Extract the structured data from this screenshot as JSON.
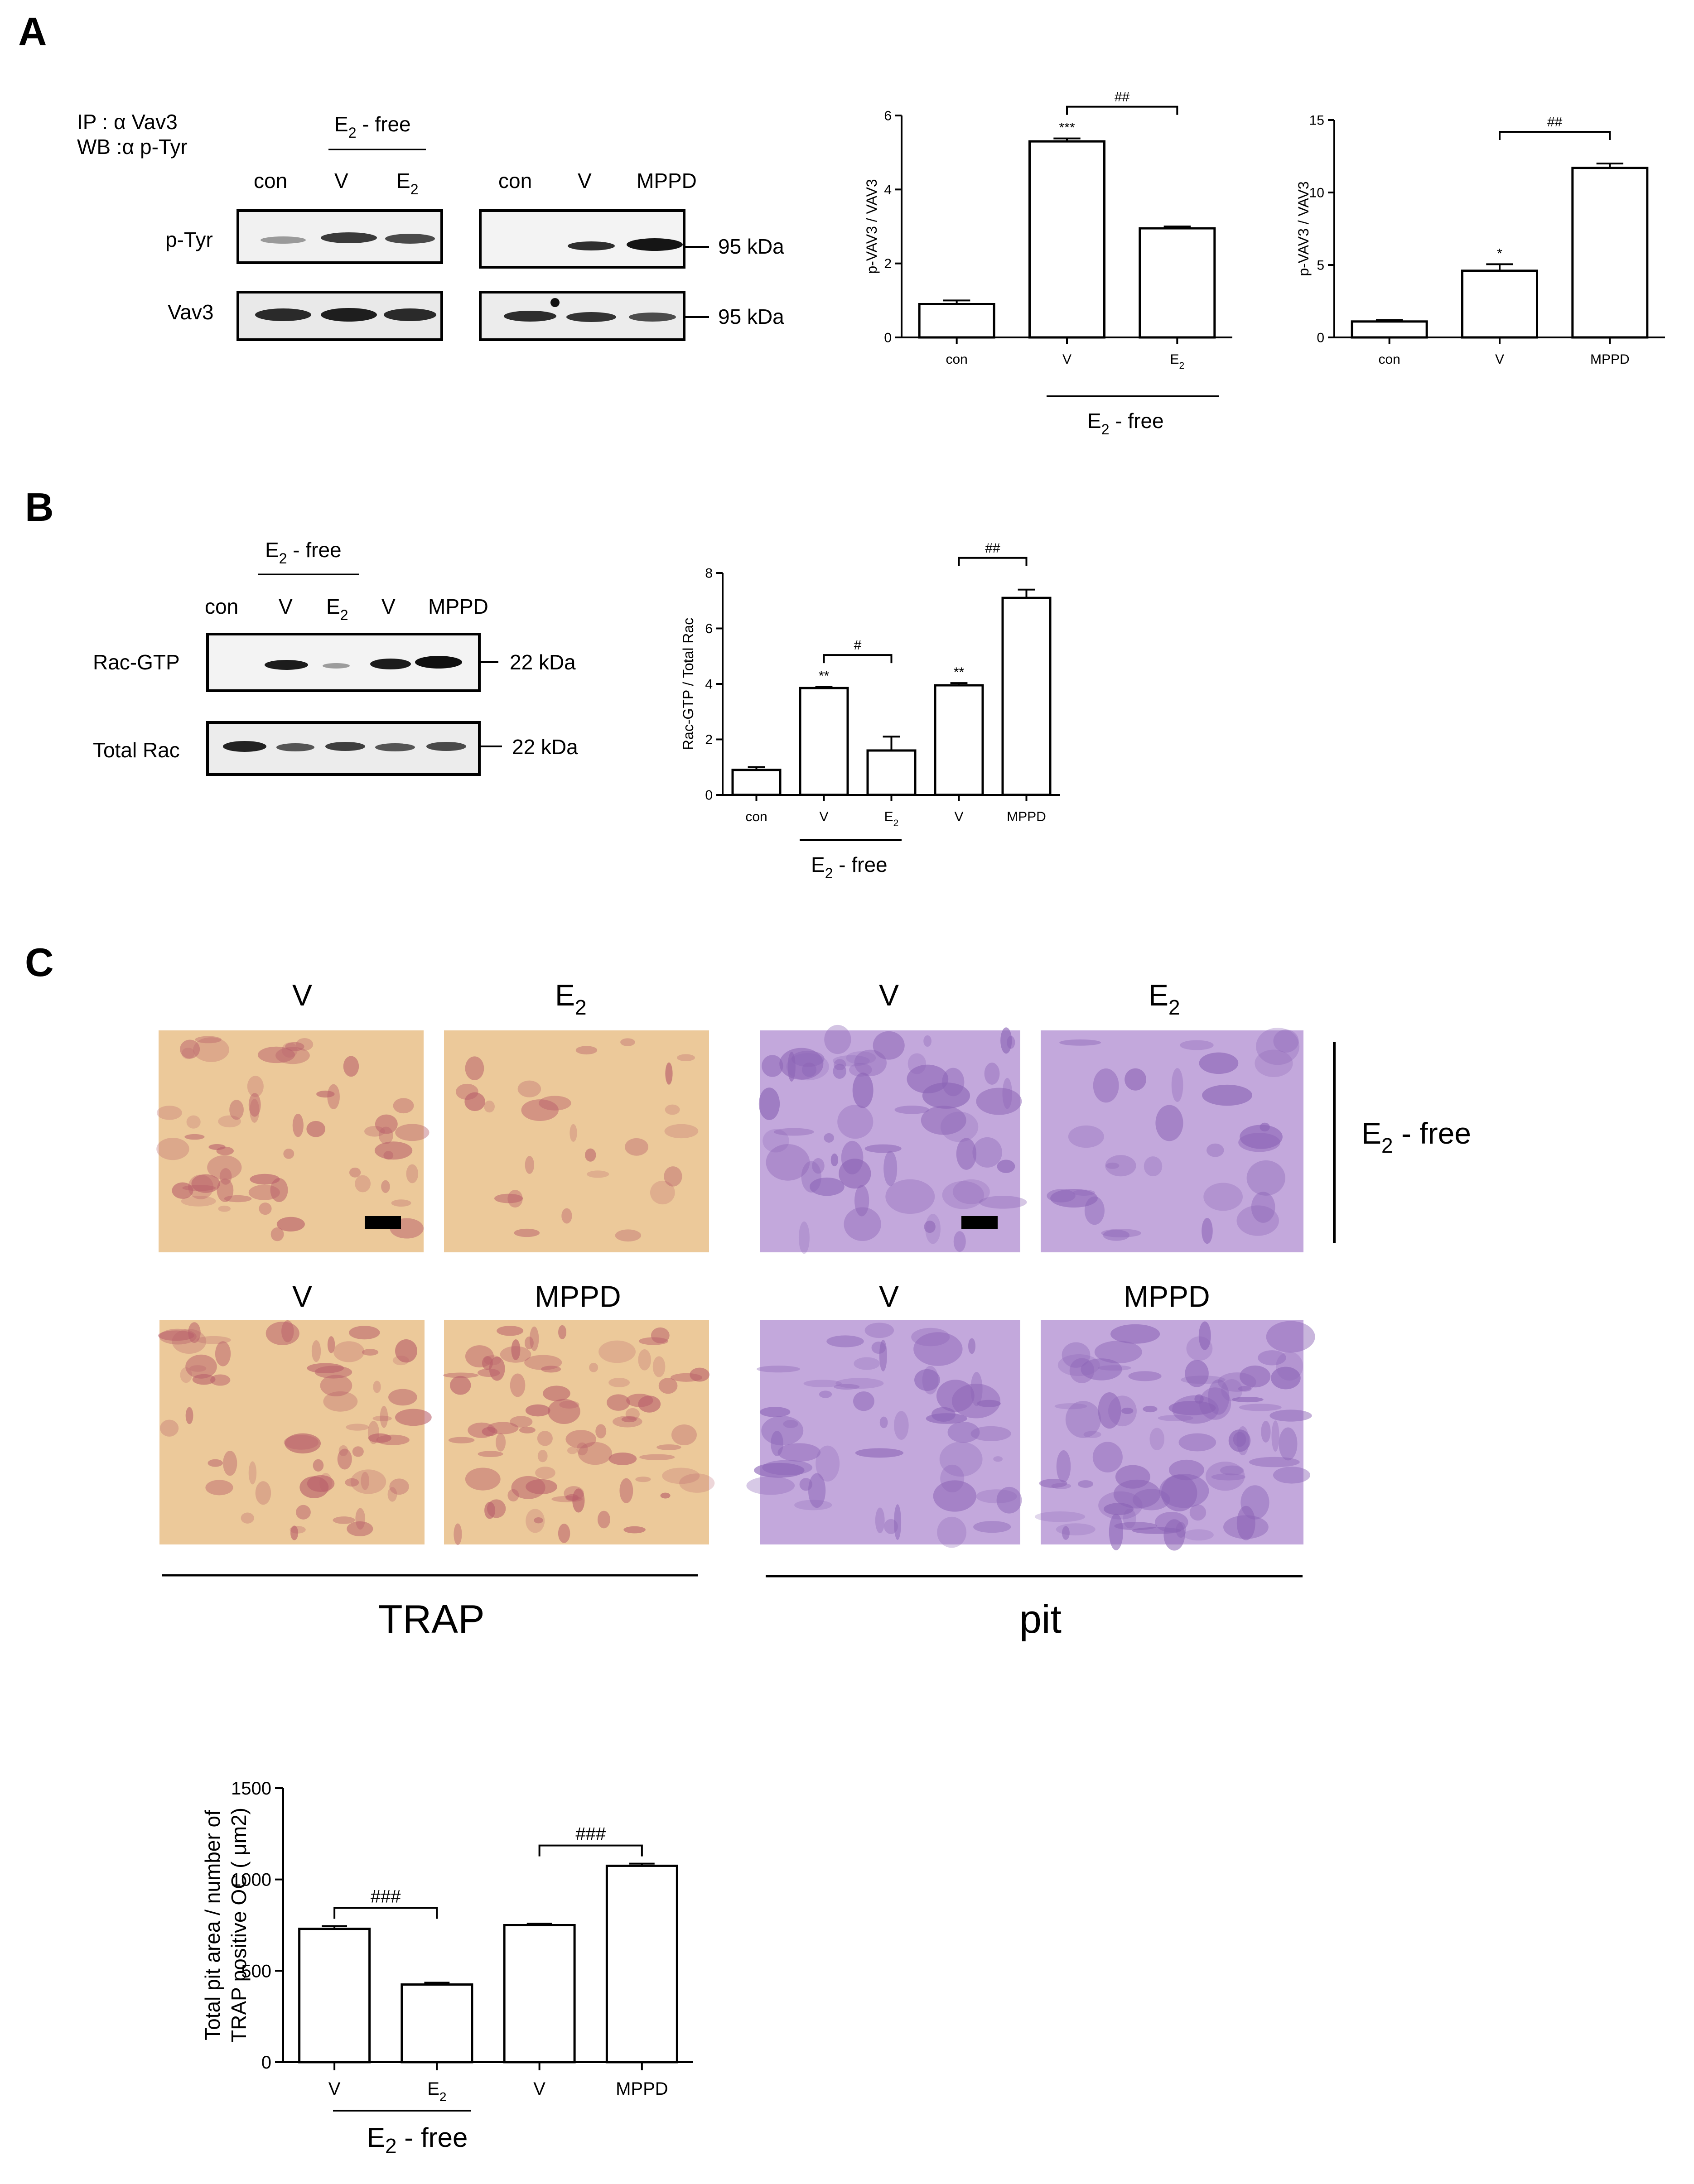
{
  "panel_letters": [
    "A",
    "B",
    "C"
  ],
  "panelA": {
    "ip": "IP : α Vav3",
    "wb": "WB :α p-Tyr",
    "e2free": "E",
    "e2free_sub": "2",
    "e2free_rest": " - free",
    "blot1": {
      "lanes": [
        "con",
        "V",
        "E"
      ],
      "lanes_sub": [
        "",
        "",
        "2"
      ]
    },
    "blot2": {
      "lanes": [
        "con",
        "V",
        "MPPD"
      ]
    },
    "rows": [
      "p-Tyr",
      "Vav3"
    ],
    "kda": "95 kDa"
  },
  "panelB": {
    "e2free": "E",
    "e2free_sub": "2",
    "e2free_rest": " - free",
    "lanes": [
      "con",
      "V",
      "E",
      "V",
      "MPPD"
    ],
    "lanes_sub": [
      "",
      "",
      "2",
      "",
      ""
    ],
    "rows": [
      "Rac-GTP",
      "Total Rac"
    ],
    "kda": "22 kDa"
  },
  "panelC": {
    "top_labels": [
      "V",
      "E",
      "V",
      "E"
    ],
    "top_subs": [
      "",
      "2",
      "",
      "2"
    ],
    "bottom_labels": [
      "V",
      "MPPD",
      "V",
      "MPPD"
    ],
    "side": "E",
    "side_sub": "2",
    "side_rest": " - free",
    "trap": "TRAP",
    "pit": "pit",
    "colors": {
      "trap_bg": "#ecc99a",
      "trap_cell": "#b9606b",
      "pit_bg": "#c3a8dc",
      "pit_cell": "#8c64b6"
    }
  },
  "chart_data": [
    {
      "id": "A-left",
      "type": "bar",
      "categories": [
        "con",
        "V",
        "E2"
      ],
      "values": [
        0.9,
        5.3,
        2.95
      ],
      "errors": [
        0.1,
        0.08,
        0.05
      ],
      "ylabel": "p-VAV3 / VAV3",
      "ylim": [
        0,
        6
      ],
      "yticks": [
        0,
        2,
        4,
        6
      ],
      "stars": [
        "",
        "***",
        ""
      ],
      "brackets": [
        {
          "from": 1,
          "to": 2,
          "label": "##"
        }
      ],
      "group_label": "E2 - free"
    },
    {
      "id": "A-right",
      "type": "bar",
      "categories": [
        "con",
        "V",
        "MPPD"
      ],
      "values": [
        1.1,
        4.6,
        11.7
      ],
      "errors": [
        0.1,
        0.45,
        0.3
      ],
      "ylabel": "p-VAV3 / VAV3",
      "ylim": [
        0,
        15
      ],
      "yticks": [
        0,
        5,
        10,
        15
      ],
      "stars": [
        "",
        "*",
        ""
      ],
      "brackets": [
        {
          "from": 1,
          "to": 2,
          "label": "##"
        }
      ]
    },
    {
      "id": "B",
      "type": "bar",
      "categories": [
        "con",
        "V",
        "E2",
        "V",
        "MPPD"
      ],
      "values": [
        0.9,
        3.85,
        1.6,
        3.95,
        7.1
      ],
      "errors": [
        0.1,
        0.05,
        0.5,
        0.08,
        0.3
      ],
      "ylabel": "Rac-GTP / Total Rac",
      "ylim": [
        0,
        8
      ],
      "yticks": [
        0,
        2,
        4,
        6,
        8
      ],
      "stars": [
        "",
        "**",
        "",
        "**",
        ""
      ],
      "brackets": [
        {
          "from": 1,
          "to": 2,
          "label": "#"
        },
        {
          "from": 3,
          "to": 4,
          "label": "##"
        }
      ],
      "group_label": "E2 - free"
    },
    {
      "id": "C",
      "type": "bar",
      "categories": [
        "V",
        "E2",
        "V",
        "MPPD"
      ],
      "values": [
        730,
        425,
        750,
        1075
      ],
      "errors": [
        15,
        10,
        8,
        12
      ],
      "ylabel_line1": "Total pit area / number of",
      "ylabel_line2": "TRAP positive OC ( μm2)",
      "ylim": [
        0,
        1500
      ],
      "yticks": [
        0,
        500,
        1000,
        1500
      ],
      "stars": [
        "",
        "",
        "",
        ""
      ],
      "brackets": [
        {
          "from": 0,
          "to": 1,
          "label": "###"
        },
        {
          "from": 2,
          "to": 3,
          "label": "###"
        }
      ],
      "group_label": "E2 - free"
    }
  ]
}
